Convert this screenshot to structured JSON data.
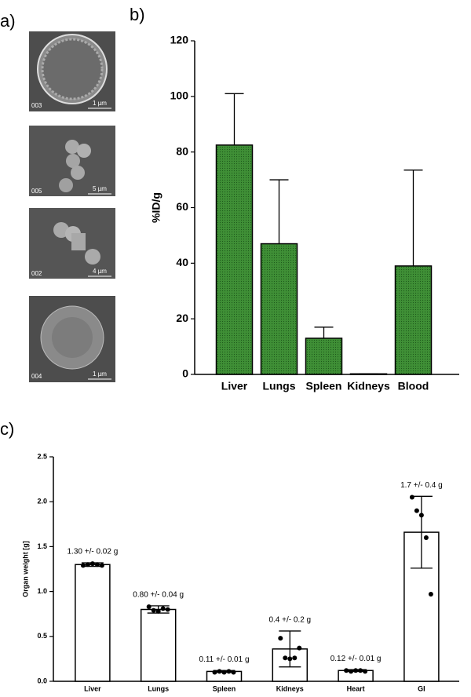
{
  "panel_labels": [
    "a)",
    "b)",
    "c)"
  ],
  "micrographs": [
    {
      "id": "003",
      "scale": "1 µm"
    },
    {
      "id": "005",
      "scale": "5 µm"
    },
    {
      "id": "002",
      "scale": "4 µm"
    },
    {
      "id": "004",
      "scale": "1 µm"
    }
  ],
  "chart_data": [
    {
      "type": "bar",
      "ylabel": "%ID/g",
      "categories": [
        "Liver",
        "Lungs",
        "Spleen",
        "Kidneys",
        "Blood"
      ],
      "values": [
        82.5,
        47,
        13,
        0.2,
        39
      ],
      "errors": [
        18.5,
        23,
        4,
        0,
        34.5
      ],
      "error_bars": "upper",
      "color": "#3f8f36",
      "ylim": [
        0,
        120
      ],
      "yticks": [
        0,
        20,
        40,
        60,
        80,
        100,
        120
      ]
    },
    {
      "type": "bar",
      "ylabel": "Organ weight [g]",
      "categories": [
        "Liver",
        "Lungs",
        "Spleen",
        "Kidneys",
        "Heart",
        "GI"
      ],
      "values": [
        1.3,
        0.8,
        0.11,
        0.36,
        0.12,
        1.66
      ],
      "errors": [
        0.02,
        0.04,
        0.01,
        0.2,
        0.01,
        0.4
      ],
      "value_labels": [
        "1.30 +/- 0.02 g",
        "0.80 +/- 0.04 g",
        "0.11 +/- 0.01 g",
        "0.4 +/- 0.2 g",
        "0.12 +/- 0.01 g",
        "1.7 +/- 0.4 g"
      ],
      "points": [
        [
          1.29,
          1.3,
          1.31,
          1.3,
          1.29
        ],
        [
          0.83,
          0.79,
          0.78,
          0.81,
          0.8
        ],
        [
          0.1,
          0.11,
          0.1,
          0.11,
          0.1
        ],
        [
          0.48,
          0.26,
          0.25,
          0.26,
          0.37
        ],
        [
          0.12,
          0.11,
          0.12,
          0.12,
          0.11
        ],
        [
          2.05,
          1.9,
          1.85,
          1.6,
          0.97
        ]
      ],
      "error_bars": "both",
      "color": "#ffffff",
      "ylim": [
        0,
        2.5
      ],
      "yticks": [
        {
          "value": 0,
          "label": "0.0"
        },
        0.5,
        {
          "value": 1,
          "label": "1.0"
        },
        1.5,
        {
          "value": 2,
          "label": "2.0"
        },
        2.5
      ]
    }
  ]
}
